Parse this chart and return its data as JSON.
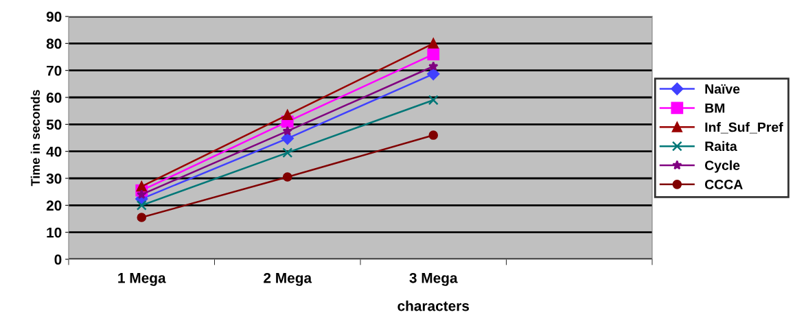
{
  "chart_data": {
    "type": "line",
    "xlabel": "characters",
    "ylabel": "Time in seconds",
    "categories": [
      "1 Mega",
      "2 Mega",
      "3 Mega",
      null
    ],
    "series": [
      {
        "name": "Naïve",
        "color": "#4040ff",
        "marker": "diamond",
        "values": [
          22.4,
          44.8,
          68.7,
          null
        ]
      },
      {
        "name": "BM",
        "color": "#ff00ff",
        "marker": "square",
        "values": [
          25.5,
          51,
          76,
          null
        ]
      },
      {
        "name": "Inf_Suf_Pref",
        "color": "#990000",
        "marker": "triangle",
        "values": [
          27,
          53.5,
          80,
          null
        ]
      },
      {
        "name": "Raita",
        "color": "#007777",
        "marker": "cross",
        "values": [
          20,
          39.5,
          59,
          null
        ]
      },
      {
        "name": "Cycle",
        "color": "#800080",
        "marker": "star",
        "values": [
          24,
          47.5,
          71.5,
          null
        ]
      },
      {
        "name": "CCCA",
        "color": "#800000",
        "marker": "circle",
        "values": [
          15.5,
          30.5,
          46,
          null
        ]
      }
    ],
    "ylim": [
      0,
      90
    ],
    "yticks": [
      0,
      10,
      20,
      30,
      40,
      50,
      60,
      70,
      80,
      90
    ],
    "grid": "y",
    "legend": "right",
    "line_style": "solid"
  }
}
